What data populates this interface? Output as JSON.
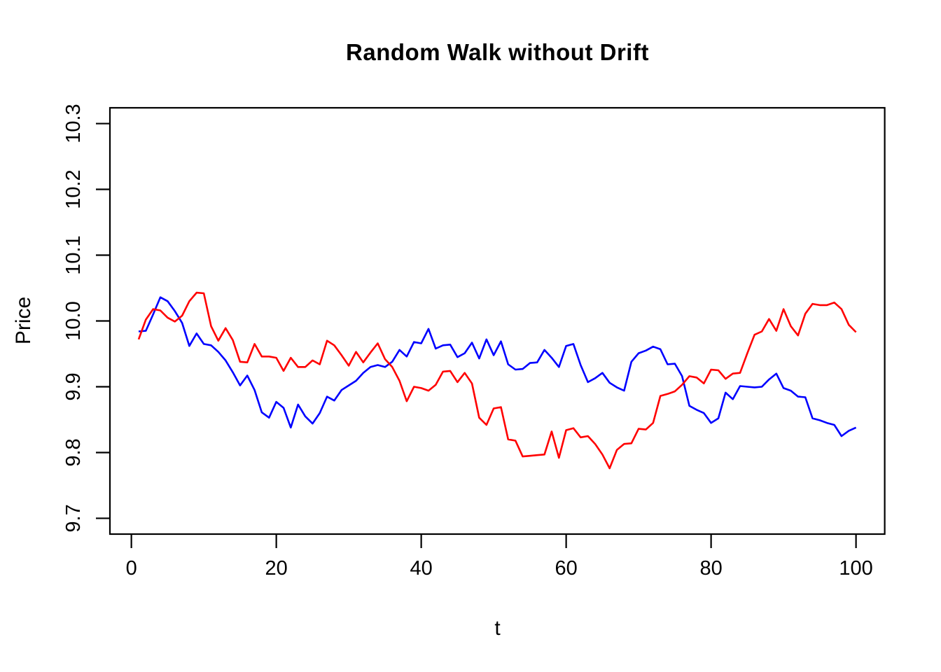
{
  "chart_data": {
    "type": "line",
    "title": "Random Walk without Drift",
    "xlabel": "t",
    "ylabel": "Price",
    "x_start": 1,
    "x_step": 1,
    "xlim": [
      -2.96,
      103.96
    ],
    "ylim": [
      9.676,
      10.324
    ],
    "xticks": [
      0,
      20,
      40,
      60,
      80,
      100
    ],
    "yticks": [
      9.7,
      9.8,
      9.9,
      10.0,
      10.1,
      10.2,
      10.3
    ],
    "grid": false,
    "legend": "none",
    "background": "#FFFFFF",
    "axis_color": "#000000",
    "series": [
      {
        "name": "random-walk-blue",
        "color": "#0000FF",
        "values": [
          9.984,
          9.985,
          10.01,
          10.036,
          10.03,
          10.015,
          9.997,
          9.962,
          9.981,
          9.965,
          9.963,
          9.953,
          9.94,
          9.922,
          9.902,
          9.917,
          9.895,
          9.861,
          9.853,
          9.877,
          9.868,
          9.838,
          9.873,
          9.855,
          9.844,
          9.86,
          9.885,
          9.879,
          9.895,
          9.902,
          9.909,
          9.921,
          9.93,
          9.933,
          9.93,
          9.938,
          9.956,
          9.946,
          9.968,
          9.966,
          9.988,
          9.958,
          9.963,
          9.964,
          9.945,
          9.951,
          9.967,
          9.943,
          9.972,
          9.948,
          9.969,
          9.934,
          9.926,
          9.927,
          9.936,
          9.937,
          9.956,
          9.944,
          9.93,
          9.962,
          9.965,
          9.933,
          9.907,
          9.913,
          9.921,
          9.906,
          9.899,
          9.894,
          9.938,
          9.951,
          9.955,
          9.961,
          9.957,
          9.934,
          9.935,
          9.916,
          9.871,
          9.865,
          9.86,
          9.845,
          9.852,
          9.891,
          9.881,
          9.901,
          9.9,
          9.899,
          9.9,
          9.911,
          9.92,
          9.898,
          9.894,
          9.885,
          9.884,
          9.852,
          9.849,
          9.845,
          9.842,
          9.825,
          9.833,
          9.838
        ]
      },
      {
        "name": "random-walk-red",
        "color": "#FF0000",
        "values": [
          9.972,
          10.002,
          10.018,
          10.016,
          10.005,
          9.999,
          10.008,
          10.03,
          10.043,
          10.042,
          9.992,
          9.97,
          9.989,
          9.971,
          9.938,
          9.937,
          9.965,
          9.946,
          9.946,
          9.944,
          9.924,
          9.944,
          9.93,
          9.93,
          9.94,
          9.934,
          9.97,
          9.963,
          9.948,
          9.932,
          9.953,
          9.937,
          9.952,
          9.966,
          9.942,
          9.93,
          9.909,
          9.878,
          9.9,
          9.898,
          9.894,
          9.903,
          9.923,
          9.924,
          9.907,
          9.921,
          9.905,
          9.853,
          9.842,
          9.867,
          9.869,
          9.82,
          9.818,
          9.794,
          9.795,
          9.796,
          9.797,
          9.832,
          9.792,
          9.834,
          9.837,
          9.823,
          9.825,
          9.813,
          9.797,
          9.776,
          9.804,
          9.813,
          9.814,
          9.836,
          9.835,
          9.845,
          9.886,
          9.889,
          9.893,
          9.903,
          9.916,
          9.914,
          9.905,
          9.926,
          9.925,
          9.912,
          9.92,
          9.921,
          9.951,
          9.979,
          9.984,
          10.003,
          9.985,
          10.018,
          9.992,
          9.978,
          10.011,
          10.026,
          10.024,
          10.024,
          10.028,
          10.018,
          9.994,
          9.983
        ]
      }
    ]
  }
}
